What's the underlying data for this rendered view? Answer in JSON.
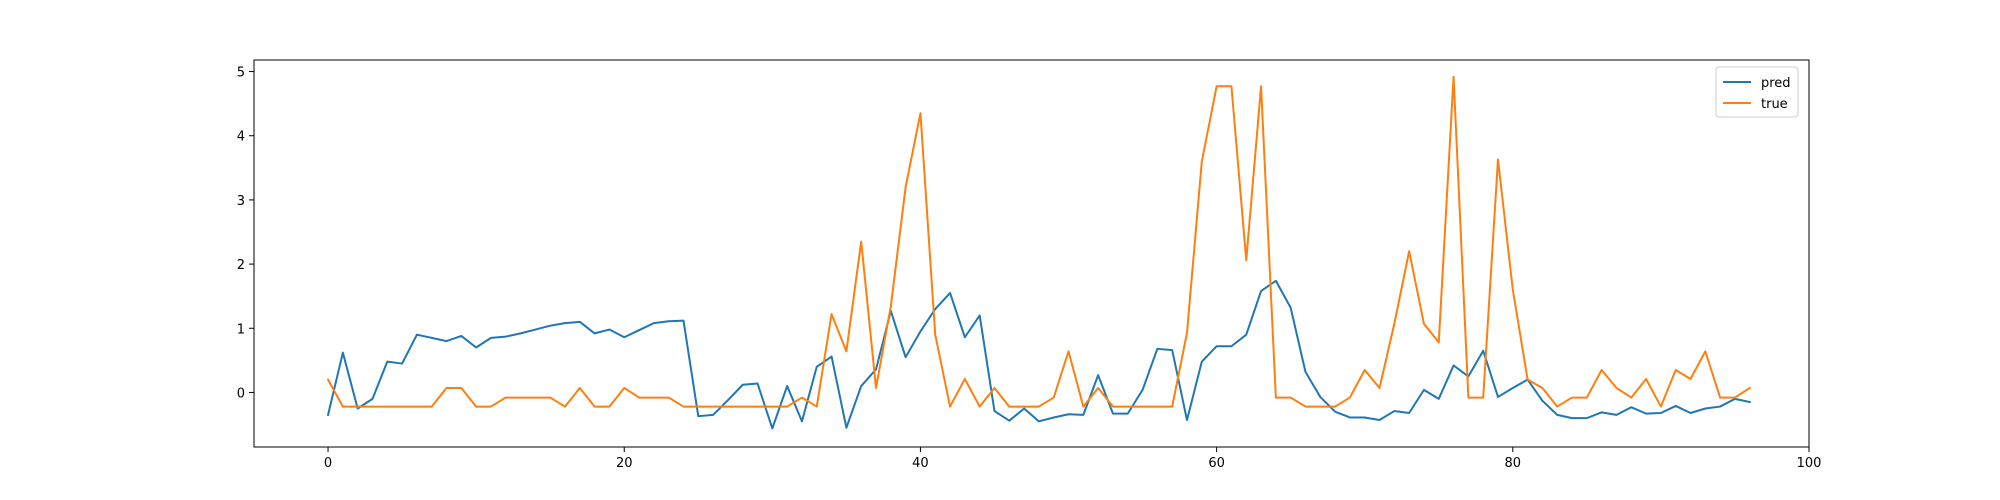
{
  "chart_data": {
    "type": "line",
    "title": "",
    "xlabel": "",
    "ylabel": "",
    "xlim": [
      -5,
      100
    ],
    "ylim": [
      -0.85,
      5.18
    ],
    "x_ticks": [
      0,
      20,
      40,
      60,
      80,
      100
    ],
    "y_ticks": [
      0,
      1,
      2,
      3,
      4,
      5
    ],
    "grid": false,
    "legend": "top-right",
    "series": [
      {
        "name": "pred",
        "color": "#1f77b4",
        "x": [
          0,
          1,
          2,
          3,
          4,
          5,
          6,
          7,
          8,
          9,
          10,
          11,
          12,
          13,
          14,
          15,
          16,
          17,
          18,
          19,
          20,
          21,
          22,
          23,
          24,
          25,
          26,
          27,
          28,
          29,
          30,
          31,
          32,
          33,
          34,
          35,
          36,
          37,
          38,
          39,
          40,
          41,
          42,
          43,
          44,
          45,
          46,
          47,
          48,
          49,
          50,
          51,
          52,
          53,
          54,
          55,
          56,
          57,
          58,
          59,
          60,
          61,
          62,
          63,
          64,
          65,
          66,
          67,
          68,
          69,
          70,
          71,
          72,
          73,
          74,
          75,
          76,
          77,
          78,
          79,
          80,
          81,
          82,
          83,
          84,
          85,
          86,
          87,
          88,
          89,
          90,
          91,
          92,
          93,
          94,
          95,
          96
        ],
        "values": [
          -0.35,
          0.62,
          -0.25,
          -0.1,
          0.48,
          0.45,
          0.9,
          0.85,
          0.8,
          0.88,
          0.7,
          0.85,
          0.87,
          0.92,
          0.98,
          1.04,
          1.08,
          1.1,
          0.92,
          0.98,
          0.86,
          0.97,
          1.08,
          1.11,
          1.12,
          -0.37,
          -0.35,
          -0.12,
          0.12,
          0.14,
          -0.56,
          0.1,
          -0.45,
          0.4,
          0.56,
          -0.55,
          0.1,
          0.36,
          1.27,
          0.55,
          0.95,
          1.3,
          1.55,
          0.86,
          1.2,
          -0.29,
          -0.44,
          -0.25,
          -0.45,
          -0.39,
          -0.34,
          -0.35,
          0.27,
          -0.33,
          -0.33,
          0.04,
          0.68,
          0.66,
          -0.43,
          0.48,
          0.72,
          0.72,
          0.9,
          1.58,
          1.74,
          1.32,
          0.32,
          -0.07,
          -0.3,
          -0.39,
          -0.39,
          -0.43,
          -0.29,
          -0.32,
          0.04,
          -0.1,
          0.42,
          0.25,
          0.65,
          -0.07,
          0.07,
          0.2,
          -0.13,
          -0.35,
          -0.4,
          -0.4,
          -0.31,
          -0.35,
          -0.23,
          -0.33,
          -0.32,
          -0.21,
          -0.32,
          -0.25,
          -0.22,
          -0.1,
          -0.15
        ]
      },
      {
        "name": "true",
        "color": "#ff7f0e",
        "x": [
          0,
          1,
          2,
          3,
          4,
          5,
          6,
          7,
          8,
          9,
          10,
          11,
          12,
          13,
          14,
          15,
          16,
          17,
          18,
          19,
          20,
          21,
          22,
          23,
          24,
          25,
          26,
          27,
          28,
          29,
          30,
          31,
          32,
          33,
          34,
          35,
          36,
          37,
          38,
          39,
          40,
          41,
          42,
          43,
          44,
          45,
          46,
          47,
          48,
          49,
          50,
          51,
          52,
          53,
          54,
          55,
          56,
          57,
          58,
          59,
          60,
          61,
          62,
          63,
          64,
          65,
          66,
          67,
          68,
          69,
          70,
          71,
          72,
          73,
          74,
          75,
          76,
          77,
          78,
          79,
          80,
          81,
          82,
          83,
          84,
          85,
          86,
          87,
          88,
          89,
          90,
          91,
          92,
          93,
          94,
          95,
          96
        ],
        "values": [
          0.2,
          -0.22,
          -0.22,
          -0.22,
          -0.22,
          -0.22,
          -0.22,
          -0.22,
          0.07,
          0.07,
          -0.22,
          -0.22,
          -0.08,
          -0.08,
          -0.08,
          -0.08,
          -0.22,
          0.07,
          -0.22,
          -0.22,
          0.07,
          -0.08,
          -0.08,
          -0.08,
          -0.22,
          -0.22,
          -0.22,
          -0.22,
          -0.22,
          -0.22,
          -0.22,
          -0.22,
          -0.08,
          -0.22,
          1.22,
          0.64,
          2.35,
          0.07,
          1.34,
          3.2,
          4.35,
          0.9,
          -0.22,
          0.21,
          -0.22,
          0.07,
          -0.22,
          -0.22,
          -0.22,
          -0.08,
          0.64,
          -0.22,
          0.07,
          -0.22,
          -0.22,
          -0.22,
          -0.22,
          -0.22,
          0.93,
          3.6,
          4.77,
          4.77,
          2.06,
          4.77,
          -0.08,
          -0.08,
          -0.22,
          -0.22,
          -0.22,
          -0.08,
          0.35,
          0.07,
          1.07,
          2.2,
          1.07,
          0.78,
          4.92,
          -0.08,
          -0.08,
          3.63,
          1.6,
          0.2,
          0.07,
          -0.22,
          -0.08,
          -0.08,
          0.35,
          0.07,
          -0.08,
          0.21,
          -0.22,
          0.35,
          0.21,
          0.64,
          -0.08,
          -0.08,
          0.07
        ]
      }
    ]
  }
}
